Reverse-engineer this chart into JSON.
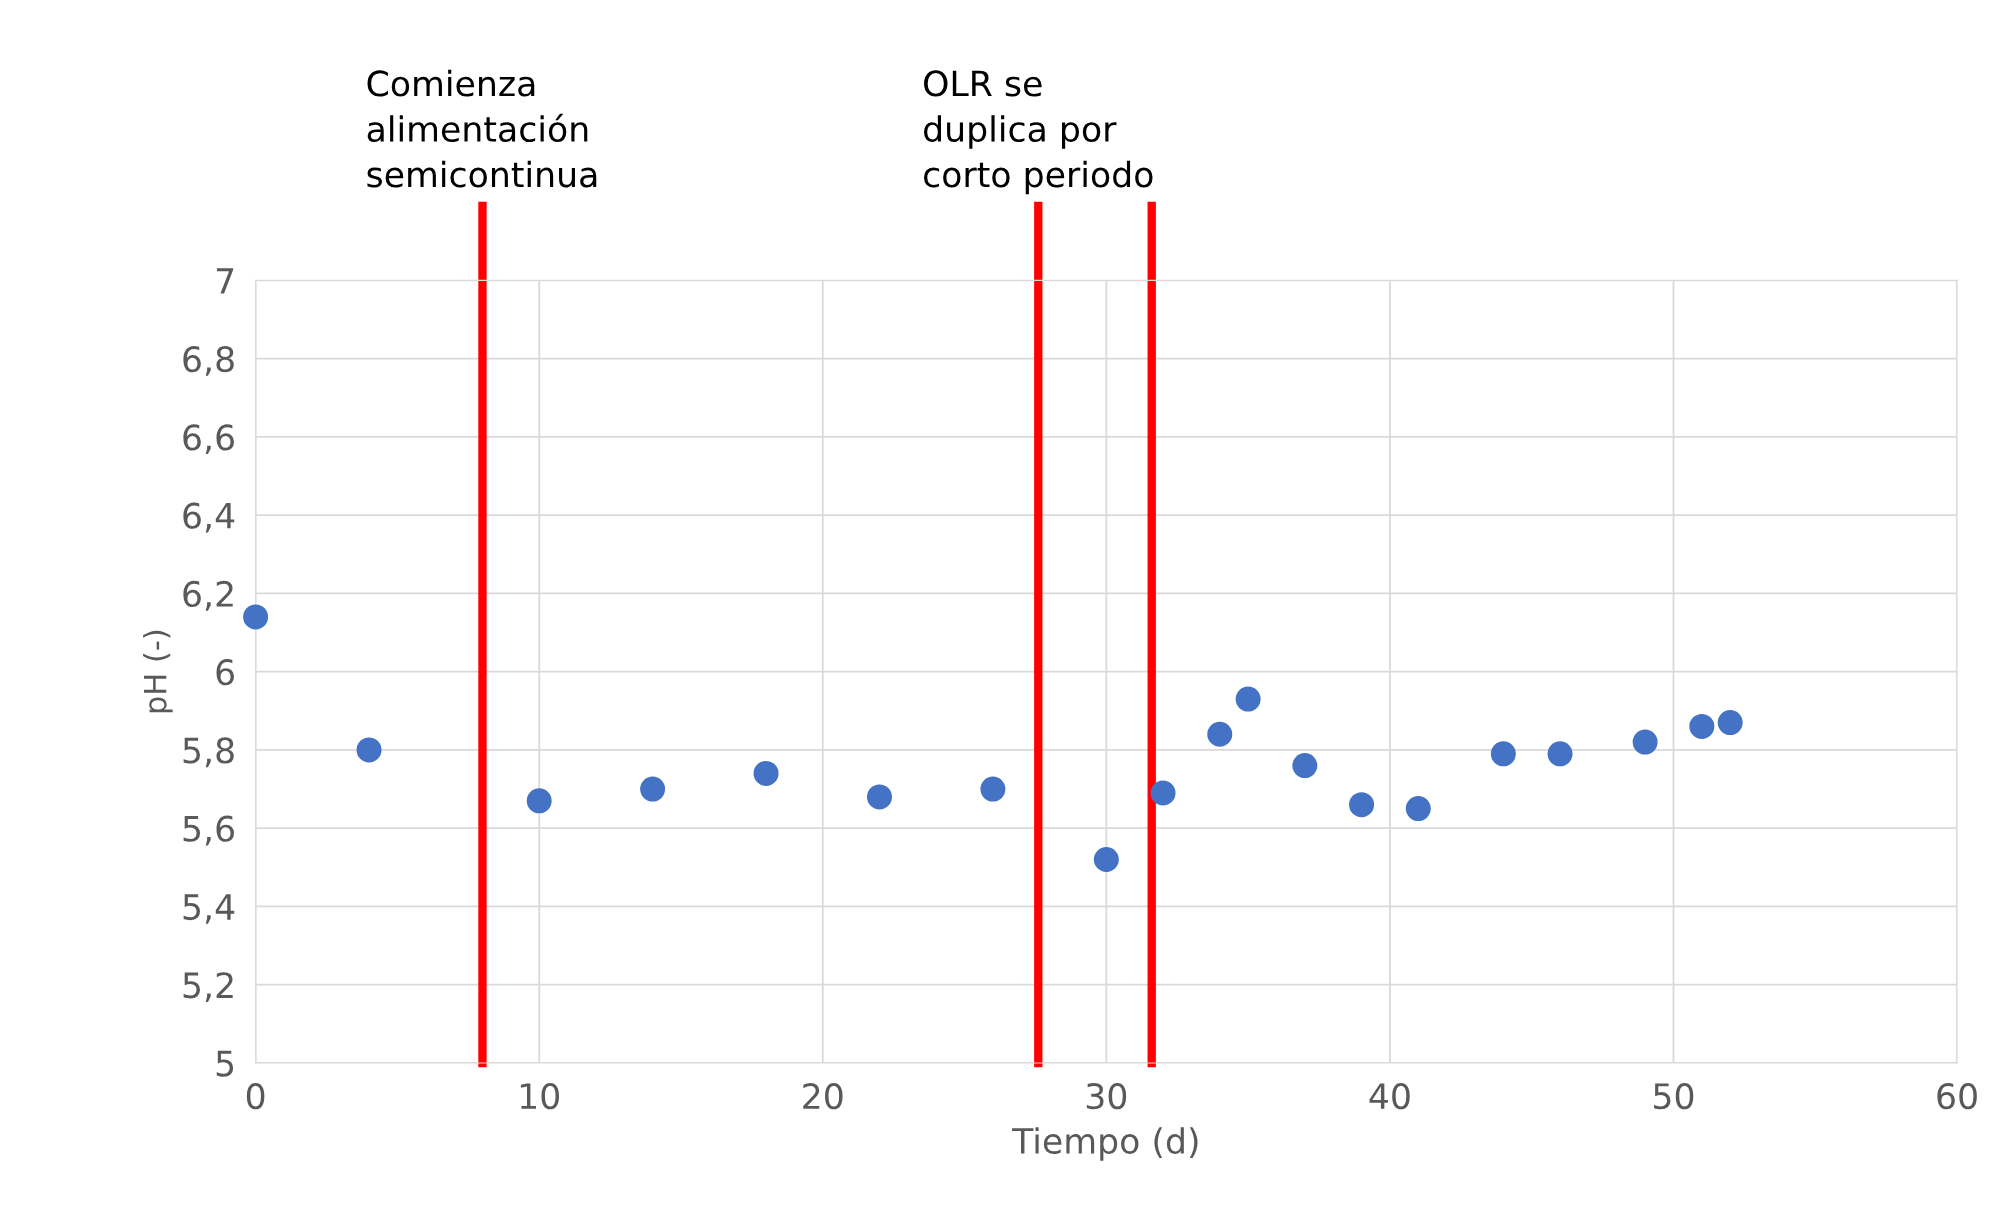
{
  "chart_data": {
    "type": "scatter",
    "xlabel": "Tiempo (d)",
    "ylabel": "pH (-)",
    "x": [
      0,
      4,
      10,
      14,
      18,
      22,
      26,
      30,
      32,
      34,
      35,
      37,
      39,
      41,
      44,
      46,
      49,
      51,
      52
    ],
    "series": [
      {
        "color": "#4472c4",
        "values": [
          6.14,
          5.8,
          5.67,
          5.7,
          5.74,
          5.68,
          5.7,
          5.52,
          5.69,
          5.84,
          5.93,
          5.76,
          5.66,
          5.65,
          5.79,
          5.79,
          5.82,
          5.86,
          5.87
        ]
      }
    ],
    "xlim": [
      0,
      60
    ],
    "xticks": [
      0,
      10,
      20,
      30,
      40,
      50,
      60
    ],
    "ylim": [
      5,
      7
    ],
    "yticks": [
      {
        "value": 5,
        "label": "5"
      },
      {
        "value": 5.2,
        "label": "5,2"
      },
      {
        "value": 5.4,
        "label": "5,4"
      },
      {
        "value": 5.6,
        "label": "5,6"
      },
      {
        "value": 5.8,
        "label": "5,8"
      },
      {
        "value": 6,
        "label": "6"
      },
      {
        "value": 6.2,
        "label": "6,2"
      },
      {
        "value": 6.4,
        "label": "6,4"
      },
      {
        "value": 6.6,
        "label": "6,6"
      },
      {
        "value": 6.8,
        "label": "6,8"
      },
      {
        "value": 7,
        "label": "7"
      }
    ],
    "ref_lines": [
      {
        "axis": "x",
        "value": 8,
        "label": "Comienza\nalimentación\nsemicontinua",
        "color": "#ff0000"
      },
      {
        "axis": "x",
        "value": 27.6,
        "label": "OLR se\nduplica por\ncorto periodo",
        "color": "#ff0000"
      },
      {
        "axis": "x",
        "value": 31.6,
        "label": null,
        "color": "#ff0000"
      }
    ],
    "grid": true,
    "marker": "circle"
  }
}
